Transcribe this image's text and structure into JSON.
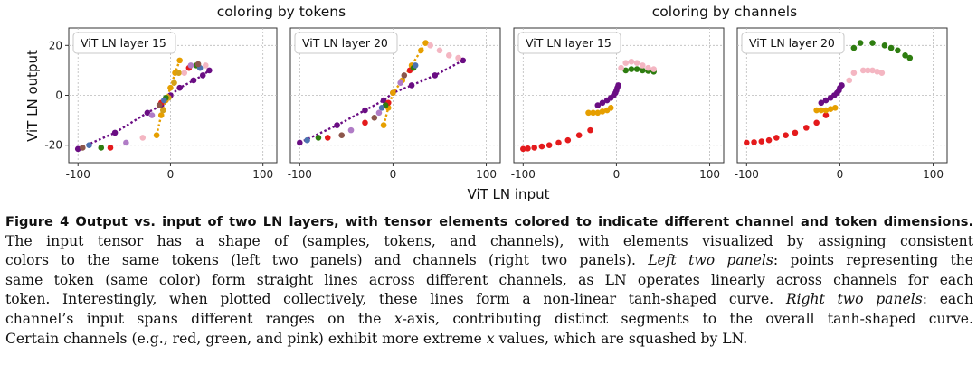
{
  "figure": {
    "group_titles": [
      "coloring by tokens",
      "coloring by channels"
    ],
    "xlabel": "ViT LN input",
    "ylabel": "ViT LN output",
    "xticks": [
      -100,
      0,
      100
    ],
    "yticks": [
      20,
      0,
      -20
    ],
    "colors": {
      "purple": "#6a0d83",
      "orange": "#e69f00",
      "gold": "#d4a017",
      "red": "#e41a1c",
      "green": "#2e7d10",
      "pink": "#f4b6c2",
      "blue": "#4c72b0",
      "brown": "#8c564b",
      "lavender": "#b07cc6",
      "dark": "#3a3a3a"
    }
  },
  "chart_data": [
    {
      "type": "scatter",
      "title": "ViT LN layer 15",
      "group": "coloring by tokens",
      "xlabel": "ViT LN input",
      "ylabel": "ViT LN output",
      "xlim": [
        -110,
        115
      ],
      "ylim": [
        -27,
        27
      ],
      "series": [
        {
          "name": "token purple",
          "color": "purple",
          "dotted": true,
          "points": [
            [
              -100,
              -21.5
            ],
            [
              -60,
              -15
            ],
            [
              -25,
              -7
            ],
            [
              -10,
              -4
            ],
            [
              0,
              0
            ],
            [
              10,
              3
            ],
            [
              25,
              6
            ],
            [
              35,
              8
            ],
            [
              42,
              10
            ]
          ]
        },
        {
          "name": "token orange",
          "color": "orange",
          "dotted": true,
          "points": [
            [
              -15,
              -16
            ],
            [
              -10,
              -8
            ],
            [
              -5,
              -2
            ],
            [
              0,
              3
            ],
            [
              5,
              9
            ],
            [
              10,
              14
            ]
          ]
        },
        {
          "name": "token gold",
          "color": "gold",
          "dotted": false,
          "points": [
            [
              -8,
              -6
            ],
            [
              -2,
              -1
            ],
            [
              4,
              5
            ],
            [
              9,
              9
            ]
          ]
        },
        {
          "name": "token red",
          "color": "red",
          "dotted": false,
          "points": [
            [
              -65,
              -21
            ],
            [
              -10,
              -3
            ],
            [
              20,
              11
            ]
          ]
        },
        {
          "name": "token green",
          "color": "green",
          "dotted": false,
          "points": [
            [
              -75,
              -21
            ],
            [
              -5,
              -1
            ],
            [
              28,
              12
            ]
          ]
        },
        {
          "name": "token blue",
          "color": "blue",
          "dotted": false,
          "points": [
            [
              -88,
              -20
            ],
            [
              -7,
              -2
            ],
            [
              32,
              11
            ]
          ]
        },
        {
          "name": "token brown",
          "color": "brown",
          "dotted": false,
          "points": [
            [
              -95,
              -21
            ],
            [
              -12,
              -4
            ],
            [
              30,
              12.5
            ]
          ]
        },
        {
          "name": "token lavender",
          "color": "lavender",
          "dotted": false,
          "points": [
            [
              -48,
              -19
            ],
            [
              -20,
              -8
            ],
            [
              22,
              12
            ]
          ]
        },
        {
          "name": "token pink",
          "color": "pink",
          "dotted": false,
          "points": [
            [
              -30,
              -17
            ],
            [
              15,
              9
            ],
            [
              38,
              12
            ]
          ]
        }
      ]
    },
    {
      "type": "scatter",
      "title": "ViT LN layer 20",
      "group": "coloring by tokens",
      "xlabel": "ViT LN input",
      "ylabel": "ViT LN output",
      "xlim": [
        -110,
        115
      ],
      "ylim": [
        -27,
        27
      ],
      "series": [
        {
          "name": "token purple",
          "color": "purple",
          "dotted": true,
          "points": [
            [
              -100,
              -19
            ],
            [
              -60,
              -12
            ],
            [
              -30,
              -6
            ],
            [
              -10,
              -2
            ],
            [
              0,
              1
            ],
            [
              20,
              4
            ],
            [
              45,
              8
            ],
            [
              75,
              14
            ]
          ]
        },
        {
          "name": "token orange",
          "color": "orange",
          "dotted": true,
          "points": [
            [
              -10,
              -12
            ],
            [
              -5,
              -5
            ],
            [
              0,
              1
            ],
            [
              10,
              6
            ],
            [
              20,
              12
            ],
            [
              30,
              18
            ],
            [
              35,
              21
            ]
          ]
        },
        {
          "name": "token pink",
          "color": "pink",
          "dotted": false,
          "points": [
            [
              40,
              20
            ],
            [
              50,
              18
            ],
            [
              60,
              16
            ],
            [
              70,
              15
            ]
          ]
        },
        {
          "name": "token red",
          "color": "red",
          "dotted": false,
          "points": [
            [
              -70,
              -17
            ],
            [
              -30,
              -11
            ],
            [
              -5,
              -3
            ],
            [
              18,
              10
            ]
          ]
        },
        {
          "name": "token green",
          "color": "green",
          "dotted": false,
          "points": [
            [
              -80,
              -17
            ],
            [
              -8,
              -4
            ],
            [
              22,
              11
            ]
          ]
        },
        {
          "name": "token blue",
          "color": "blue",
          "dotted": false,
          "points": [
            [
              -92,
              -18
            ],
            [
              -12,
              -5
            ],
            [
              24,
              12
            ]
          ]
        },
        {
          "name": "token brown",
          "color": "brown",
          "dotted": false,
          "points": [
            [
              -55,
              -16
            ],
            [
              -20,
              -9
            ],
            [
              12,
              8
            ]
          ]
        },
        {
          "name": "token lavender",
          "color": "lavender",
          "dotted": false,
          "points": [
            [
              -45,
              -14
            ],
            [
              -15,
              -7
            ],
            [
              8,
              5
            ]
          ]
        }
      ]
    },
    {
      "type": "scatter",
      "title": "ViT LN layer 15",
      "group": "coloring by channels",
      "xlabel": "ViT LN input",
      "ylabel": "ViT LN output",
      "xlim": [
        -110,
        115
      ],
      "ylim": [
        -27,
        27
      ],
      "series": [
        {
          "name": "channel red",
          "color": "red",
          "dotted": false,
          "points": [
            [
              -100,
              -21.5
            ],
            [
              -95,
              -21.3
            ],
            [
              -88,
              -21
            ],
            [
              -80,
              -20.5
            ],
            [
              -72,
              -20
            ],
            [
              -62,
              -19
            ],
            [
              -52,
              -18
            ],
            [
              -40,
              -16
            ],
            [
              -28,
              -14
            ]
          ]
        },
        {
          "name": "channel orange",
          "color": "orange",
          "dotted": false,
          "points": [
            [
              -30,
              -7
            ],
            [
              -25,
              -7
            ],
            [
              -20,
              -7
            ],
            [
              -15,
              -6.5
            ],
            [
              -10,
              -6
            ],
            [
              -6,
              -5
            ]
          ]
        },
        {
          "name": "channel purple",
          "color": "purple",
          "dotted": false,
          "points": [
            [
              -20,
              -4
            ],
            [
              -15,
              -3
            ],
            [
              -10,
              -2
            ],
            [
              -6,
              -1
            ],
            [
              -3,
              0
            ],
            [
              -1,
              1
            ],
            [
              0,
              2
            ],
            [
              1,
              3
            ],
            [
              2,
              4
            ]
          ]
        },
        {
          "name": "channel green",
          "color": "green",
          "dotted": false,
          "points": [
            [
              10,
              10
            ],
            [
              16,
              10.5
            ],
            [
              22,
              10.5
            ],
            [
              28,
              10
            ],
            [
              34,
              9.8
            ],
            [
              40,
              9.5
            ]
          ]
        },
        {
          "name": "channel pink",
          "color": "pink",
          "dotted": false,
          "points": [
            [
              5,
              11
            ],
            [
              10,
              13
            ],
            [
              16,
              13.5
            ],
            [
              22,
              13
            ],
            [
              28,
              12
            ],
            [
              34,
              11
            ],
            [
              40,
              10.5
            ]
          ]
        }
      ]
    },
    {
      "type": "scatter",
      "title": "ViT LN layer 20",
      "group": "coloring by channels",
      "xlabel": "ViT LN input",
      "ylabel": "ViT LN output",
      "xlim": [
        -110,
        115
      ],
      "ylim": [
        -27,
        27
      ],
      "series": [
        {
          "name": "channel red",
          "color": "red",
          "dotted": false,
          "points": [
            [
              -100,
              -19
            ],
            [
              -92,
              -18.8
            ],
            [
              -84,
              -18.5
            ],
            [
              -76,
              -18
            ],
            [
              -68,
              -17
            ],
            [
              -58,
              -16
            ],
            [
              -48,
              -15
            ],
            [
              -36,
              -13
            ],
            [
              -25,
              -11
            ],
            [
              -15,
              -8
            ]
          ]
        },
        {
          "name": "channel orange",
          "color": "orange",
          "dotted": false,
          "points": [
            [
              -25,
              -6
            ],
            [
              -20,
              -6
            ],
            [
              -15,
              -6
            ],
            [
              -10,
              -5.5
            ],
            [
              -5,
              -5
            ]
          ]
        },
        {
          "name": "channel purple",
          "color": "purple",
          "dotted": false,
          "points": [
            [
              -20,
              -3
            ],
            [
              -15,
              -2
            ],
            [
              -10,
              -1
            ],
            [
              -6,
              0
            ],
            [
              -3,
              1
            ],
            [
              -1,
              2
            ],
            [
              0,
              3
            ],
            [
              2,
              4
            ]
          ]
        },
        {
          "name": "channel pink",
          "color": "pink",
          "dotted": false,
          "points": [
            [
              10,
              6
            ],
            [
              15,
              9
            ],
            [
              25,
              10
            ],
            [
              30,
              10
            ],
            [
              35,
              10
            ],
            [
              40,
              9.5
            ],
            [
              45,
              9
            ]
          ]
        },
        {
          "name": "channel green",
          "color": "green",
          "dotted": false,
          "points": [
            [
              15,
              19
            ],
            [
              22,
              21
            ],
            [
              35,
              21
            ],
            [
              48,
              20
            ],
            [
              55,
              19
            ],
            [
              62,
              18
            ],
            [
              70,
              16
            ],
            [
              75,
              15
            ]
          ]
        }
      ]
    }
  ],
  "caption": {
    "bold": "Figure 4  Output vs. input of two LN layers, with tensor elements colored to indicate different channel and token dimensions.",
    "lines": [
      [
        {
          "t": "The input tensor has a shape of (samples, tokens, and channels), with elements visualized by assigning consistent"
        }
      ],
      [
        {
          "t": "colors to the same tokens (left two panels) and channels (right two panels). "
        },
        {
          "t": "Left two panels",
          "i": true
        },
        {
          "t": ": points representing the"
        }
      ],
      [
        {
          "t": "same token (same color) form straight lines across different channels, as LN operates linearly across channels for each"
        }
      ],
      [
        {
          "t": "token. Interestingly, when plotted collectively, these lines form a non-linear tanh-shaped curve. "
        },
        {
          "t": "Right two panels",
          "i": true
        },
        {
          "t": ": each"
        }
      ],
      [
        {
          "t": "channel’s input spans different ranges on the "
        },
        {
          "t": "x",
          "i": true
        },
        {
          "t": "-axis, contributing distinct segments to the overall tanh-shaped curve."
        }
      ],
      [
        {
          "t": "Certain channels (e.g., red, green, and pink) exhibit more extreme "
        },
        {
          "t": "x",
          "i": true
        },
        {
          "t": " values, which are squashed by LN."
        }
      ]
    ]
  }
}
